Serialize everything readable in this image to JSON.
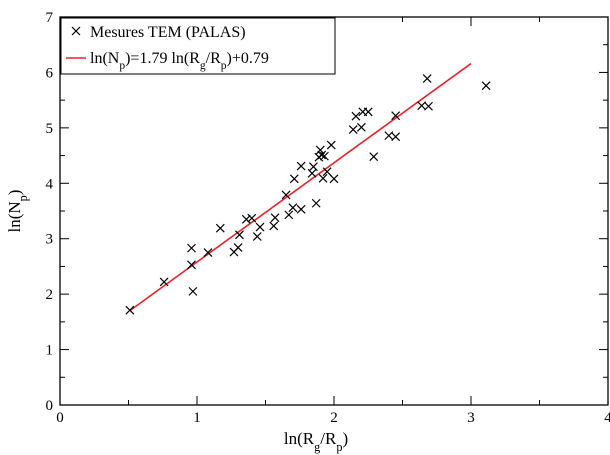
{
  "chart_data": {
    "type": "scatter",
    "title": "",
    "xlabel": "ln(R_g/R_p)",
    "ylabel": "ln(N_p)",
    "xlim": [
      0,
      4
    ],
    "ylim": [
      0,
      7
    ],
    "x_ticks": [
      "0",
      "1",
      "2",
      "3",
      "4"
    ],
    "y_ticks": [
      "0",
      "1",
      "2",
      "3",
      "4",
      "5",
      "6",
      "7"
    ],
    "grid": false,
    "legend_position": "top-left",
    "series": [
      {
        "name": "Mesures TEM (PALAS)",
        "marker": "x",
        "color": "#000000",
        "points": [
          [
            0.51,
            1.71
          ],
          [
            0.76,
            2.22
          ],
          [
            0.96,
            2.83
          ],
          [
            0.96,
            2.53
          ],
          [
            0.97,
            2.05
          ],
          [
            1.08,
            2.75
          ],
          [
            1.17,
            3.19
          ],
          [
            1.27,
            2.76
          ],
          [
            1.3,
            2.84
          ],
          [
            1.31,
            3.07
          ],
          [
            1.36,
            3.35
          ],
          [
            1.4,
            3.37
          ],
          [
            1.44,
            3.04
          ],
          [
            1.46,
            3.21
          ],
          [
            1.56,
            3.23
          ],
          [
            1.57,
            3.38
          ],
          [
            1.65,
            3.79
          ],
          [
            1.67,
            3.43
          ],
          [
            1.7,
            3.56
          ],
          [
            1.71,
            4.08
          ],
          [
            1.76,
            3.53
          ],
          [
            1.76,
            4.31
          ],
          [
            1.84,
            4.18
          ],
          [
            1.85,
            4.3
          ],
          [
            1.87,
            3.64
          ],
          [
            1.89,
            4.47
          ],
          [
            1.9,
            4.6
          ],
          [
            1.91,
            4.51
          ],
          [
            1.92,
            4.09
          ],
          [
            1.93,
            4.49
          ],
          [
            1.95,
            4.21
          ],
          [
            1.98,
            4.69
          ],
          [
            2.0,
            4.08
          ],
          [
            2.14,
            4.97
          ],
          [
            2.16,
            5.21
          ],
          [
            2.2,
            5.01
          ],
          [
            2.21,
            5.29
          ],
          [
            2.25,
            5.29
          ],
          [
            2.29,
            4.48
          ],
          [
            2.4,
            4.86
          ],
          [
            2.45,
            4.84
          ],
          [
            2.45,
            5.22
          ],
          [
            2.64,
            5.4
          ],
          [
            2.68,
            5.89
          ],
          [
            2.69,
            5.39
          ],
          [
            3.11,
            5.76
          ]
        ]
      },
      {
        "name": "ln(N_p)=1.79 ln(R_g/R_p)+0.79",
        "type": "line",
        "color": "#e8232a",
        "slope": 1.79,
        "intercept": 0.79,
        "x_range": [
          0.51,
          3.0
        ]
      }
    ]
  }
}
